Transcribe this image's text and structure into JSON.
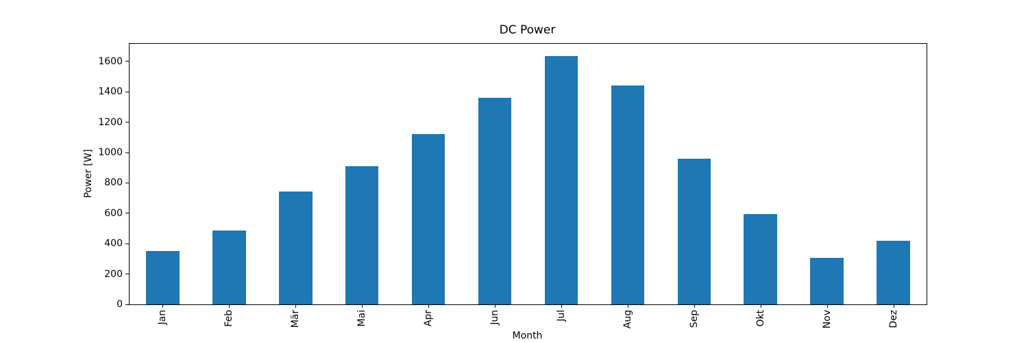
{
  "chart_data": {
    "type": "bar",
    "title": "DC Power",
    "xlabel": "Month",
    "ylabel": "Power [W]",
    "categories": [
      "Jan",
      "Feb",
      "Mär",
      "Mai",
      "Apr",
      "Jun",
      "Jul",
      "Aug",
      "Sep",
      "Okt",
      "Nov",
      "Dez"
    ],
    "values": [
      350,
      488,
      745,
      912,
      1124,
      1362,
      1635,
      1440,
      962,
      596,
      308,
      418
    ],
    "yticks": [
      0,
      200,
      400,
      600,
      800,
      1000,
      1200,
      1400,
      1600
    ],
    "ylim": [
      0,
      1717
    ],
    "x_tick_rotation_deg": 90,
    "bar_color": "#1f77b4",
    "bar_width_fraction": 0.5,
    "grid": false,
    "legend": "none"
  }
}
